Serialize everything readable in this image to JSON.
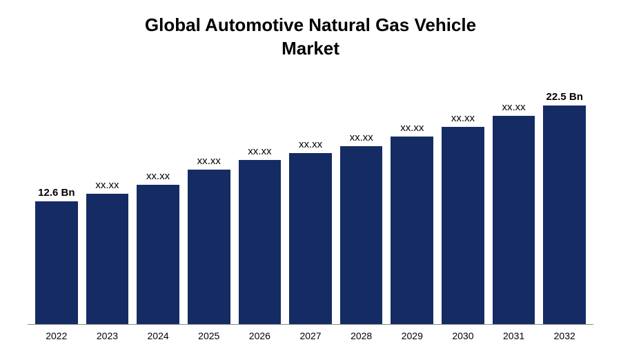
{
  "chart": {
    "type": "bar",
    "title_line1": "Global Automotive Natural Gas Vehicle",
    "title_line2": "Market",
    "title_fontsize": 26,
    "title_fontweight": "bold",
    "title_color": "#000000",
    "background_color": "#ffffff",
    "bar_color": "#142c63",
    "axis_color": "#888888",
    "xlabel_fontsize": 14,
    "xlabel_color": "#000000",
    "barlabel_fontsize": 15,
    "barlabel_color": "#000000",
    "ylim": [
      0,
      25
    ],
    "bars": [
      {
        "year": "2022",
        "label": "12.6 Bn",
        "value": 12.6,
        "label_bold": true
      },
      {
        "year": "2023",
        "label": "xx.xx",
        "value": 13.4,
        "label_bold": false
      },
      {
        "year": "2024",
        "label": "xx.xx",
        "value": 14.3,
        "label_bold": false
      },
      {
        "year": "2025",
        "label": "xx.xx",
        "value": 15.9,
        "label_bold": false
      },
      {
        "year": "2026",
        "label": "xx.xx",
        "value": 16.9,
        "label_bold": false
      },
      {
        "year": "2027",
        "label": "xx.xx",
        "value": 17.6,
        "label_bold": false
      },
      {
        "year": "2028",
        "label": "xx.xx",
        "value": 18.3,
        "label_bold": false
      },
      {
        "year": "2029",
        "label": "xx.xx",
        "value": 19.3,
        "label_bold": false
      },
      {
        "year": "2030",
        "label": "xx.xx",
        "value": 20.3,
        "label_bold": false
      },
      {
        "year": "2031",
        "label": "xx.xx",
        "value": 21.4,
        "label_bold": false
      },
      {
        "year": "2032",
        "label": "22.5 Bn",
        "value": 22.5,
        "label_bold": true
      }
    ]
  }
}
